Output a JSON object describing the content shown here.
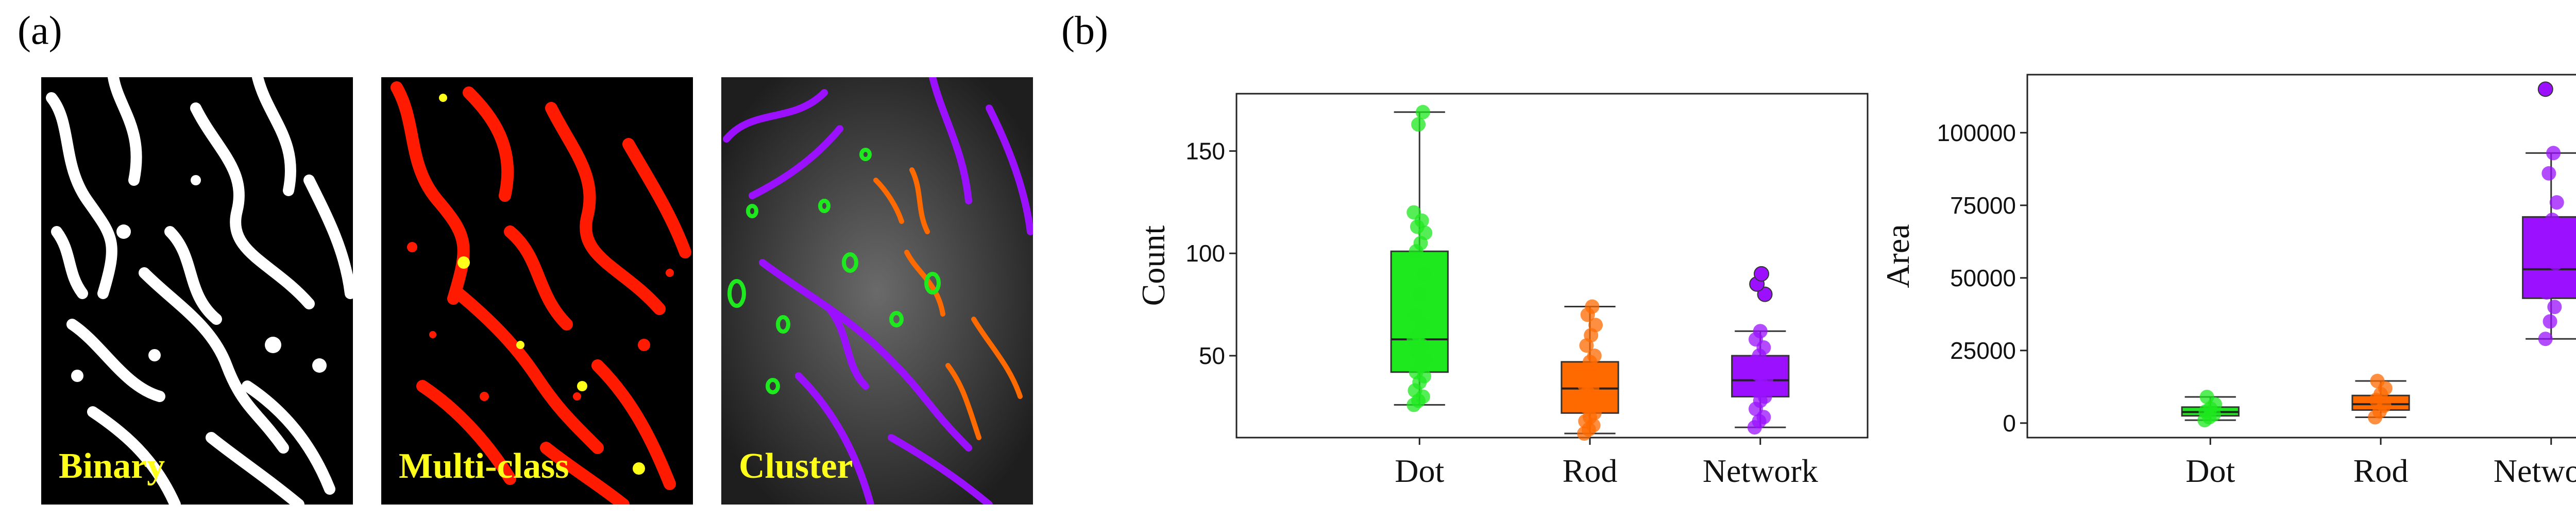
{
  "panels": {
    "a_label": "(a)",
    "b_label": "(b)"
  },
  "images": [
    {
      "label": "Binary"
    },
    {
      "label": "Multi-class"
    },
    {
      "label": "Cluster"
    }
  ],
  "colors": {
    "dot": "#1ee81e",
    "rod": "#ff6a00",
    "network": "#9a10ff",
    "red": "#ff1a00",
    "yellow": "#ffff1a"
  },
  "chart_data": [
    {
      "type": "box",
      "title": "",
      "xlabel": "",
      "ylabel": "Count",
      "ylim": [
        10,
        178
      ],
      "yticks": [
        50,
        100,
        150
      ],
      "categories": [
        "Dot",
        "Rod",
        "Network"
      ],
      "boxes": [
        {
          "name": "Dot",
          "color": "#1ee81e",
          "min": 26,
          "q1": 42,
          "median": 58,
          "q3": 101,
          "max": 169,
          "points": [
            26,
            28,
            30,
            33,
            37,
            40,
            42,
            45,
            48,
            52,
            55,
            58,
            60,
            65,
            70,
            80,
            90,
            101,
            105,
            110,
            113,
            116,
            120,
            163,
            169
          ]
        },
        {
          "name": "Rod",
          "color": "#ff6a00",
          "min": 12,
          "q1": 22,
          "median": 34,
          "q3": 47,
          "max": 74,
          "points": [
            12,
            14,
            16,
            18,
            20,
            22,
            25,
            28,
            30,
            32,
            34,
            36,
            38,
            40,
            43,
            47,
            50,
            55,
            60,
            65,
            70,
            74
          ]
        },
        {
          "name": "Network",
          "color": "#9a10ff",
          "min": 15,
          "q1": 30,
          "median": 38,
          "q3": 50,
          "max": 62,
          "points": [
            15,
            18,
            20,
            24,
            28,
            30,
            33,
            36,
            38,
            41,
            44,
            47,
            50,
            54,
            58,
            62,
            80,
            85,
            90
          ]
        }
      ]
    },
    {
      "type": "box",
      "title": "",
      "xlabel": "",
      "ylabel": "Area",
      "ylim": [
        -5000,
        120000
      ],
      "yticks": [
        0,
        25000,
        50000,
        75000,
        100000
      ],
      "categories": [
        "Dot",
        "Rod",
        "Network"
      ],
      "boxes": [
        {
          "name": "Dot",
          "color": "#1ee81e",
          "min": 1000,
          "q1": 2500,
          "median": 3800,
          "q3": 5500,
          "max": 9000,
          "points": [
            1000,
            2000,
            3000,
            4000,
            5000,
            6500,
            9000
          ]
        },
        {
          "name": "Rod",
          "color": "#ff6a00",
          "min": 2000,
          "q1": 4500,
          "median": 6500,
          "q3": 9500,
          "max": 14500,
          "points": [
            2000,
            4000,
            6000,
            8000,
            10000,
            12000,
            14500
          ]
        },
        {
          "name": "Network",
          "color": "#9a10ff",
          "min": 29000,
          "q1": 43000,
          "median": 53000,
          "q3": 71000,
          "max": 93000,
          "points": [
            29000,
            35000,
            40000,
            45000,
            50000,
            55000,
            62000,
            70000,
            76000,
            86000,
            93000,
            115000
          ]
        }
      ]
    }
  ]
}
